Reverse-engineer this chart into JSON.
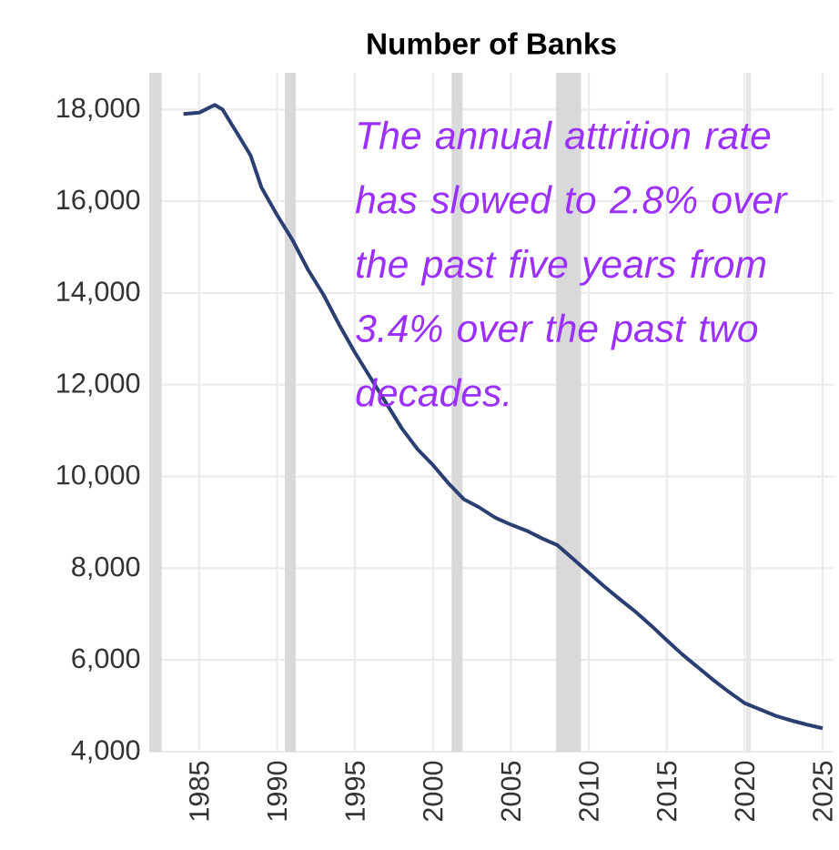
{
  "chart_data": {
    "type": "line",
    "title": "Number of Banks",
    "x": [
      1984,
      1985,
      1986,
      1986.5,
      1987.5,
      1988.3,
      1989,
      1990,
      1991,
      1992,
      1993,
      1994,
      1995,
      1996,
      1997,
      1998,
      1999,
      2000,
      2001,
      2002,
      2003,
      2004,
      2005,
      2006,
      2007,
      2008,
      2009,
      2010,
      2011,
      2012,
      2013,
      2014,
      2015,
      2016,
      2017,
      2018,
      2019,
      2020,
      2021,
      2022,
      2023,
      2024,
      2025
    ],
    "series": [
      {
        "color": "#2b3f73",
        "values": [
          17900,
          17930,
          18100,
          18000,
          17450,
          17000,
          16300,
          15700,
          15150,
          14500,
          13950,
          13300,
          12700,
          12150,
          11600,
          11050,
          10600,
          10250,
          9850,
          9500,
          9320,
          9100,
          8950,
          8820,
          8650,
          8500,
          8200,
          7900,
          7600,
          7320,
          7050,
          6750,
          6430,
          6120,
          5840,
          5560,
          5300,
          5060,
          4920,
          4780,
          4680,
          4590,
          4510
        ]
      }
    ],
    "xlim": [
      1981.8,
      2025.7
    ],
    "ylim": [
      4000,
      18800
    ],
    "xticks": [
      1985,
      1990,
      1995,
      2000,
      2005,
      2010,
      2015,
      2020,
      2025
    ],
    "yticks": [
      {
        "value": 4000,
        "label": "4,000"
      },
      {
        "value": 6000,
        "label": "6,000"
      },
      {
        "value": 8000,
        "label": "8,000"
      },
      {
        "value": 10000,
        "label": "10,000"
      },
      {
        "value": 12000,
        "label": "12,000"
      },
      {
        "value": 14000,
        "label": "14,000"
      },
      {
        "value": 16000,
        "label": "16,000"
      },
      {
        "value": 18000,
        "label": "18,000"
      }
    ],
    "grid": true,
    "marker": "none",
    "line_style": "solid",
    "bands": [
      {
        "axis": "x",
        "from": 1981.8,
        "to": 1982.6,
        "color": "#d9d9d9"
      },
      {
        "axis": "x",
        "from": 1990.5,
        "to": 1991.2,
        "color": "#d9d9d9"
      },
      {
        "axis": "x",
        "from": 2001.2,
        "to": 2001.9,
        "color": "#d9d9d9"
      },
      {
        "axis": "x",
        "from": 2007.9,
        "to": 2009.5,
        "color": "#d9d9d9"
      },
      {
        "axis": "x",
        "from": 2020.1,
        "to": 2020.4,
        "color": "#e6e6e6"
      }
    ],
    "annotations": [
      "The annual attrition rate has slowed to 2.8% over the past five years from 3.4% over the past two decades."
    ]
  }
}
